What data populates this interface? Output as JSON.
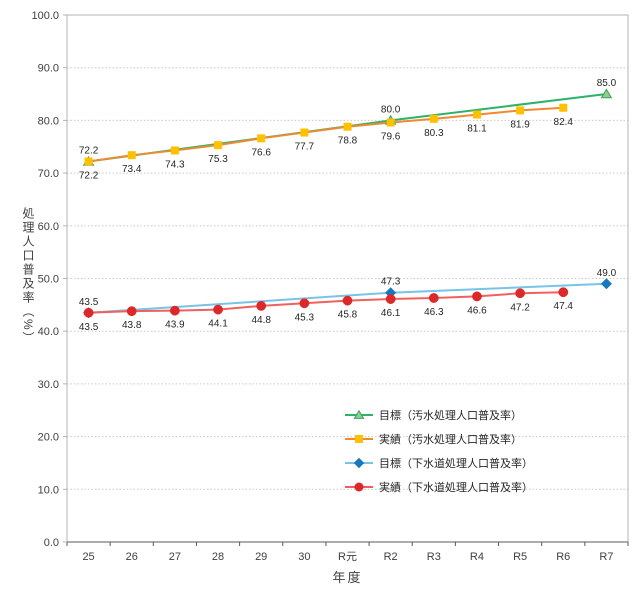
{
  "chart_data": {
    "type": "line",
    "title": "",
    "xlabel": "年度",
    "ylabel": "処理人口普及率（%）",
    "ylim": [
      0,
      100
    ],
    "y_tick_step": 10,
    "y_ticks": [
      0,
      10,
      20,
      30,
      40,
      50,
      60,
      70,
      80,
      90,
      100
    ],
    "grid": true,
    "legend_position": "inside-lower-right",
    "categories": [
      "25",
      "26",
      "27",
      "28",
      "29",
      "30",
      "R元",
      "R2",
      "R3",
      "R4",
      "R5",
      "R6",
      "R7"
    ],
    "series": [
      {
        "name": "目標（汚水処理人口普及率）",
        "marker": "triangle",
        "line_color": "#2eb269",
        "marker_fill": "#8fcc92",
        "marker_stroke": "#3da05c",
        "label_position": "above",
        "categories": [
          "25",
          "R2",
          "R7"
        ],
        "values": [
          72.2,
          80.0,
          85.0
        ]
      },
      {
        "name": "実績（汚水処理人口普及率）",
        "marker": "square",
        "line_color": "#ee8a31",
        "marker_fill": "#ffc000",
        "marker_stroke": "#ffc000",
        "label_position": "below",
        "categories": [
          "25",
          "26",
          "27",
          "28",
          "29",
          "30",
          "R元",
          "R2",
          "R3",
          "R4",
          "R5",
          "R6"
        ],
        "values": [
          72.2,
          73.4,
          74.3,
          75.3,
          76.6,
          77.7,
          78.8,
          79.6,
          80.3,
          81.1,
          81.9,
          82.4
        ]
      },
      {
        "name": "目標（下水道処理人口普及率）",
        "marker": "diamond",
        "line_color": "#78c3e6",
        "marker_fill": "#1679bd",
        "marker_stroke": "#1679bd",
        "label_position": "above",
        "categories": [
          "25",
          "R2",
          "R7"
        ],
        "values": [
          43.5,
          47.3,
          49.0
        ]
      },
      {
        "name": "実績（下水道処理人口普及率）",
        "marker": "circle",
        "line_color": "#f0605e",
        "marker_fill": "#dc2828",
        "marker_stroke": "#dc2828",
        "label_position": "below",
        "categories": [
          "25",
          "26",
          "27",
          "28",
          "29",
          "30",
          "R元",
          "R2",
          "R3",
          "R4",
          "R5",
          "R6"
        ],
        "values": [
          43.5,
          43.8,
          43.9,
          44.1,
          44.8,
          45.3,
          45.8,
          46.1,
          46.3,
          46.6,
          47.2,
          47.4
        ]
      }
    ],
    "colors": {
      "grid": "#c8c8c8",
      "frame": "#b5b5b5",
      "axis": "#595959",
      "tick_label": "#3f3f3f",
      "data_label": "#262626"
    }
  }
}
